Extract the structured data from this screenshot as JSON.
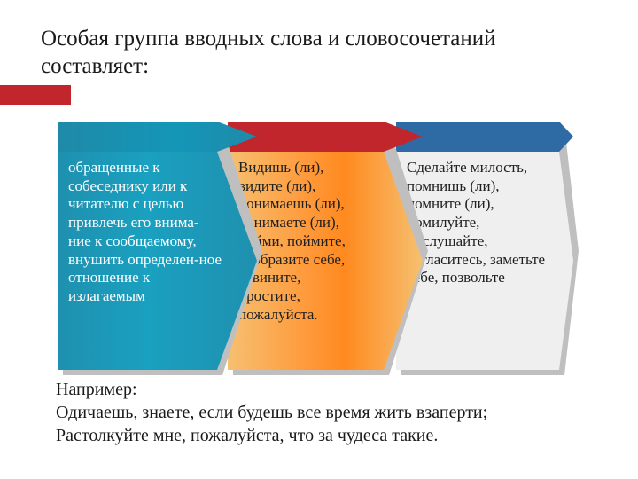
{
  "title": "Особая группа вводных слова и словосочетаний составляет:",
  "accent_bar_color": "#c0262c",
  "diagram": {
    "type": "infographic",
    "layout": "layered-chevrons",
    "aspect": "720x540",
    "shadow_color": "#bfbfbf",
    "panels": [
      {
        "id": "panel-1",
        "z": 3,
        "header_color_from": "#1f8aa8",
        "header_color_to": "#1496b8",
        "face_color_from": "#1f90af",
        "face_color_to": "#1aa0c0",
        "text_color": "#ffffff",
        "text": " обращенные к собеседнику или к читателю с целью привлечь его внима-ние к сообщаемому, внушить определен-ное отношение к излагаемым"
      },
      {
        "id": "panel-2",
        "z": 2,
        "header_color": "#c0262c",
        "face_gradient": [
          "#f6c070",
          "#ff9a3c",
          "#ff8a1f",
          "#f6c070"
        ],
        "text_color": "#202020",
        "text": "Видишь (ли), видите (ли), понимаешь (ли), понимаете (ли), пойми, поймите, вообразите себе, извините, простите, пожалуйста."
      },
      {
        "id": "panel-3",
        "z": 1,
        "header_color": "#2e6ba5",
        "face_color": "#efefef",
        "text_color": "#202020",
        "text": "Сделайте милость, помнишь (ли), помните (ли), помилуйте, послушайте, согласитесь, заметьте себе, позвольте"
      }
    ]
  },
  "example": {
    "label": "Например:",
    "line1": "Одичаешь, знаете, если будешь все время жить взаперти;",
    "line2": "Растолкуйте мне, пожалуйста, что за чудеса такие."
  },
  "colors": {
    "background": "#ffffff",
    "text": "#1a1a1a"
  },
  "typography": {
    "title_fontsize_pt": 19,
    "body_fontsize_pt": 13,
    "example_fontsize_pt": 15,
    "font_family": "Times New Roman"
  }
}
